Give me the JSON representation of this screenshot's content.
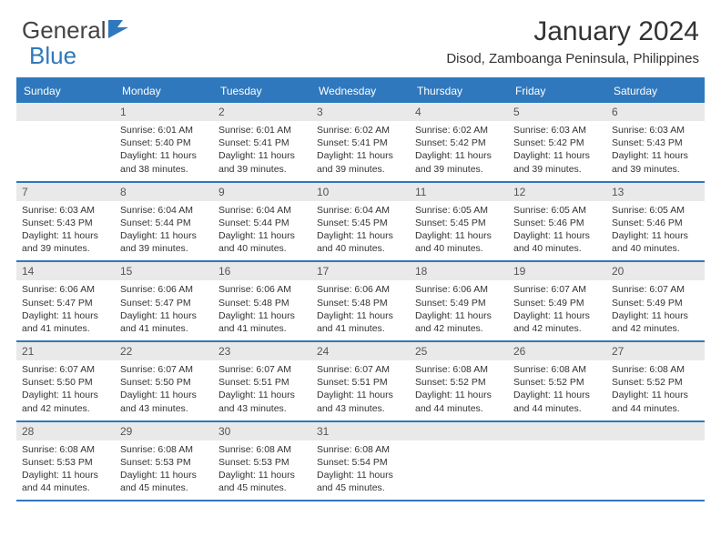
{
  "brand": {
    "general": "General",
    "blue": "Blue"
  },
  "title": "January 2024",
  "location": "Disod, Zamboanga Peninsula, Philippines",
  "colors": {
    "accent": "#2f78bd",
    "dayHeaderBg": "#e9e9e9",
    "background": "#ffffff",
    "text": "#333333"
  },
  "dayNames": [
    "Sunday",
    "Monday",
    "Tuesday",
    "Wednesday",
    "Thursday",
    "Friday",
    "Saturday"
  ],
  "weeks": [
    [
      {
        "empty": true
      },
      {
        "num": "1",
        "sunrise": "Sunrise: 6:01 AM",
        "sunset": "Sunset: 5:40 PM",
        "daylight": "Daylight: 11 hours and 38 minutes."
      },
      {
        "num": "2",
        "sunrise": "Sunrise: 6:01 AM",
        "sunset": "Sunset: 5:41 PM",
        "daylight": "Daylight: 11 hours and 39 minutes."
      },
      {
        "num": "3",
        "sunrise": "Sunrise: 6:02 AM",
        "sunset": "Sunset: 5:41 PM",
        "daylight": "Daylight: 11 hours and 39 minutes."
      },
      {
        "num": "4",
        "sunrise": "Sunrise: 6:02 AM",
        "sunset": "Sunset: 5:42 PM",
        "daylight": "Daylight: 11 hours and 39 minutes."
      },
      {
        "num": "5",
        "sunrise": "Sunrise: 6:03 AM",
        "sunset": "Sunset: 5:42 PM",
        "daylight": "Daylight: 11 hours and 39 minutes."
      },
      {
        "num": "6",
        "sunrise": "Sunrise: 6:03 AM",
        "sunset": "Sunset: 5:43 PM",
        "daylight": "Daylight: 11 hours and 39 minutes."
      }
    ],
    [
      {
        "num": "7",
        "sunrise": "Sunrise: 6:03 AM",
        "sunset": "Sunset: 5:43 PM",
        "daylight": "Daylight: 11 hours and 39 minutes."
      },
      {
        "num": "8",
        "sunrise": "Sunrise: 6:04 AM",
        "sunset": "Sunset: 5:44 PM",
        "daylight": "Daylight: 11 hours and 39 minutes."
      },
      {
        "num": "9",
        "sunrise": "Sunrise: 6:04 AM",
        "sunset": "Sunset: 5:44 PM",
        "daylight": "Daylight: 11 hours and 40 minutes."
      },
      {
        "num": "10",
        "sunrise": "Sunrise: 6:04 AM",
        "sunset": "Sunset: 5:45 PM",
        "daylight": "Daylight: 11 hours and 40 minutes."
      },
      {
        "num": "11",
        "sunrise": "Sunrise: 6:05 AM",
        "sunset": "Sunset: 5:45 PM",
        "daylight": "Daylight: 11 hours and 40 minutes."
      },
      {
        "num": "12",
        "sunrise": "Sunrise: 6:05 AM",
        "sunset": "Sunset: 5:46 PM",
        "daylight": "Daylight: 11 hours and 40 minutes."
      },
      {
        "num": "13",
        "sunrise": "Sunrise: 6:05 AM",
        "sunset": "Sunset: 5:46 PM",
        "daylight": "Daylight: 11 hours and 40 minutes."
      }
    ],
    [
      {
        "num": "14",
        "sunrise": "Sunrise: 6:06 AM",
        "sunset": "Sunset: 5:47 PM",
        "daylight": "Daylight: 11 hours and 41 minutes."
      },
      {
        "num": "15",
        "sunrise": "Sunrise: 6:06 AM",
        "sunset": "Sunset: 5:47 PM",
        "daylight": "Daylight: 11 hours and 41 minutes."
      },
      {
        "num": "16",
        "sunrise": "Sunrise: 6:06 AM",
        "sunset": "Sunset: 5:48 PM",
        "daylight": "Daylight: 11 hours and 41 minutes."
      },
      {
        "num": "17",
        "sunrise": "Sunrise: 6:06 AM",
        "sunset": "Sunset: 5:48 PM",
        "daylight": "Daylight: 11 hours and 41 minutes."
      },
      {
        "num": "18",
        "sunrise": "Sunrise: 6:06 AM",
        "sunset": "Sunset: 5:49 PM",
        "daylight": "Daylight: 11 hours and 42 minutes."
      },
      {
        "num": "19",
        "sunrise": "Sunrise: 6:07 AM",
        "sunset": "Sunset: 5:49 PM",
        "daylight": "Daylight: 11 hours and 42 minutes."
      },
      {
        "num": "20",
        "sunrise": "Sunrise: 6:07 AM",
        "sunset": "Sunset: 5:49 PM",
        "daylight": "Daylight: 11 hours and 42 minutes."
      }
    ],
    [
      {
        "num": "21",
        "sunrise": "Sunrise: 6:07 AM",
        "sunset": "Sunset: 5:50 PM",
        "daylight": "Daylight: 11 hours and 42 minutes."
      },
      {
        "num": "22",
        "sunrise": "Sunrise: 6:07 AM",
        "sunset": "Sunset: 5:50 PM",
        "daylight": "Daylight: 11 hours and 43 minutes."
      },
      {
        "num": "23",
        "sunrise": "Sunrise: 6:07 AM",
        "sunset": "Sunset: 5:51 PM",
        "daylight": "Daylight: 11 hours and 43 minutes."
      },
      {
        "num": "24",
        "sunrise": "Sunrise: 6:07 AM",
        "sunset": "Sunset: 5:51 PM",
        "daylight": "Daylight: 11 hours and 43 minutes."
      },
      {
        "num": "25",
        "sunrise": "Sunrise: 6:08 AM",
        "sunset": "Sunset: 5:52 PM",
        "daylight": "Daylight: 11 hours and 44 minutes."
      },
      {
        "num": "26",
        "sunrise": "Sunrise: 6:08 AM",
        "sunset": "Sunset: 5:52 PM",
        "daylight": "Daylight: 11 hours and 44 minutes."
      },
      {
        "num": "27",
        "sunrise": "Sunrise: 6:08 AM",
        "sunset": "Sunset: 5:52 PM",
        "daylight": "Daylight: 11 hours and 44 minutes."
      }
    ],
    [
      {
        "num": "28",
        "sunrise": "Sunrise: 6:08 AM",
        "sunset": "Sunset: 5:53 PM",
        "daylight": "Daylight: 11 hours and 44 minutes."
      },
      {
        "num": "29",
        "sunrise": "Sunrise: 6:08 AM",
        "sunset": "Sunset: 5:53 PM",
        "daylight": "Daylight: 11 hours and 45 minutes."
      },
      {
        "num": "30",
        "sunrise": "Sunrise: 6:08 AM",
        "sunset": "Sunset: 5:53 PM",
        "daylight": "Daylight: 11 hours and 45 minutes."
      },
      {
        "num": "31",
        "sunrise": "Sunrise: 6:08 AM",
        "sunset": "Sunset: 5:54 PM",
        "daylight": "Daylight: 11 hours and 45 minutes."
      },
      {
        "empty": true
      },
      {
        "empty": true
      },
      {
        "empty": true
      }
    ]
  ]
}
